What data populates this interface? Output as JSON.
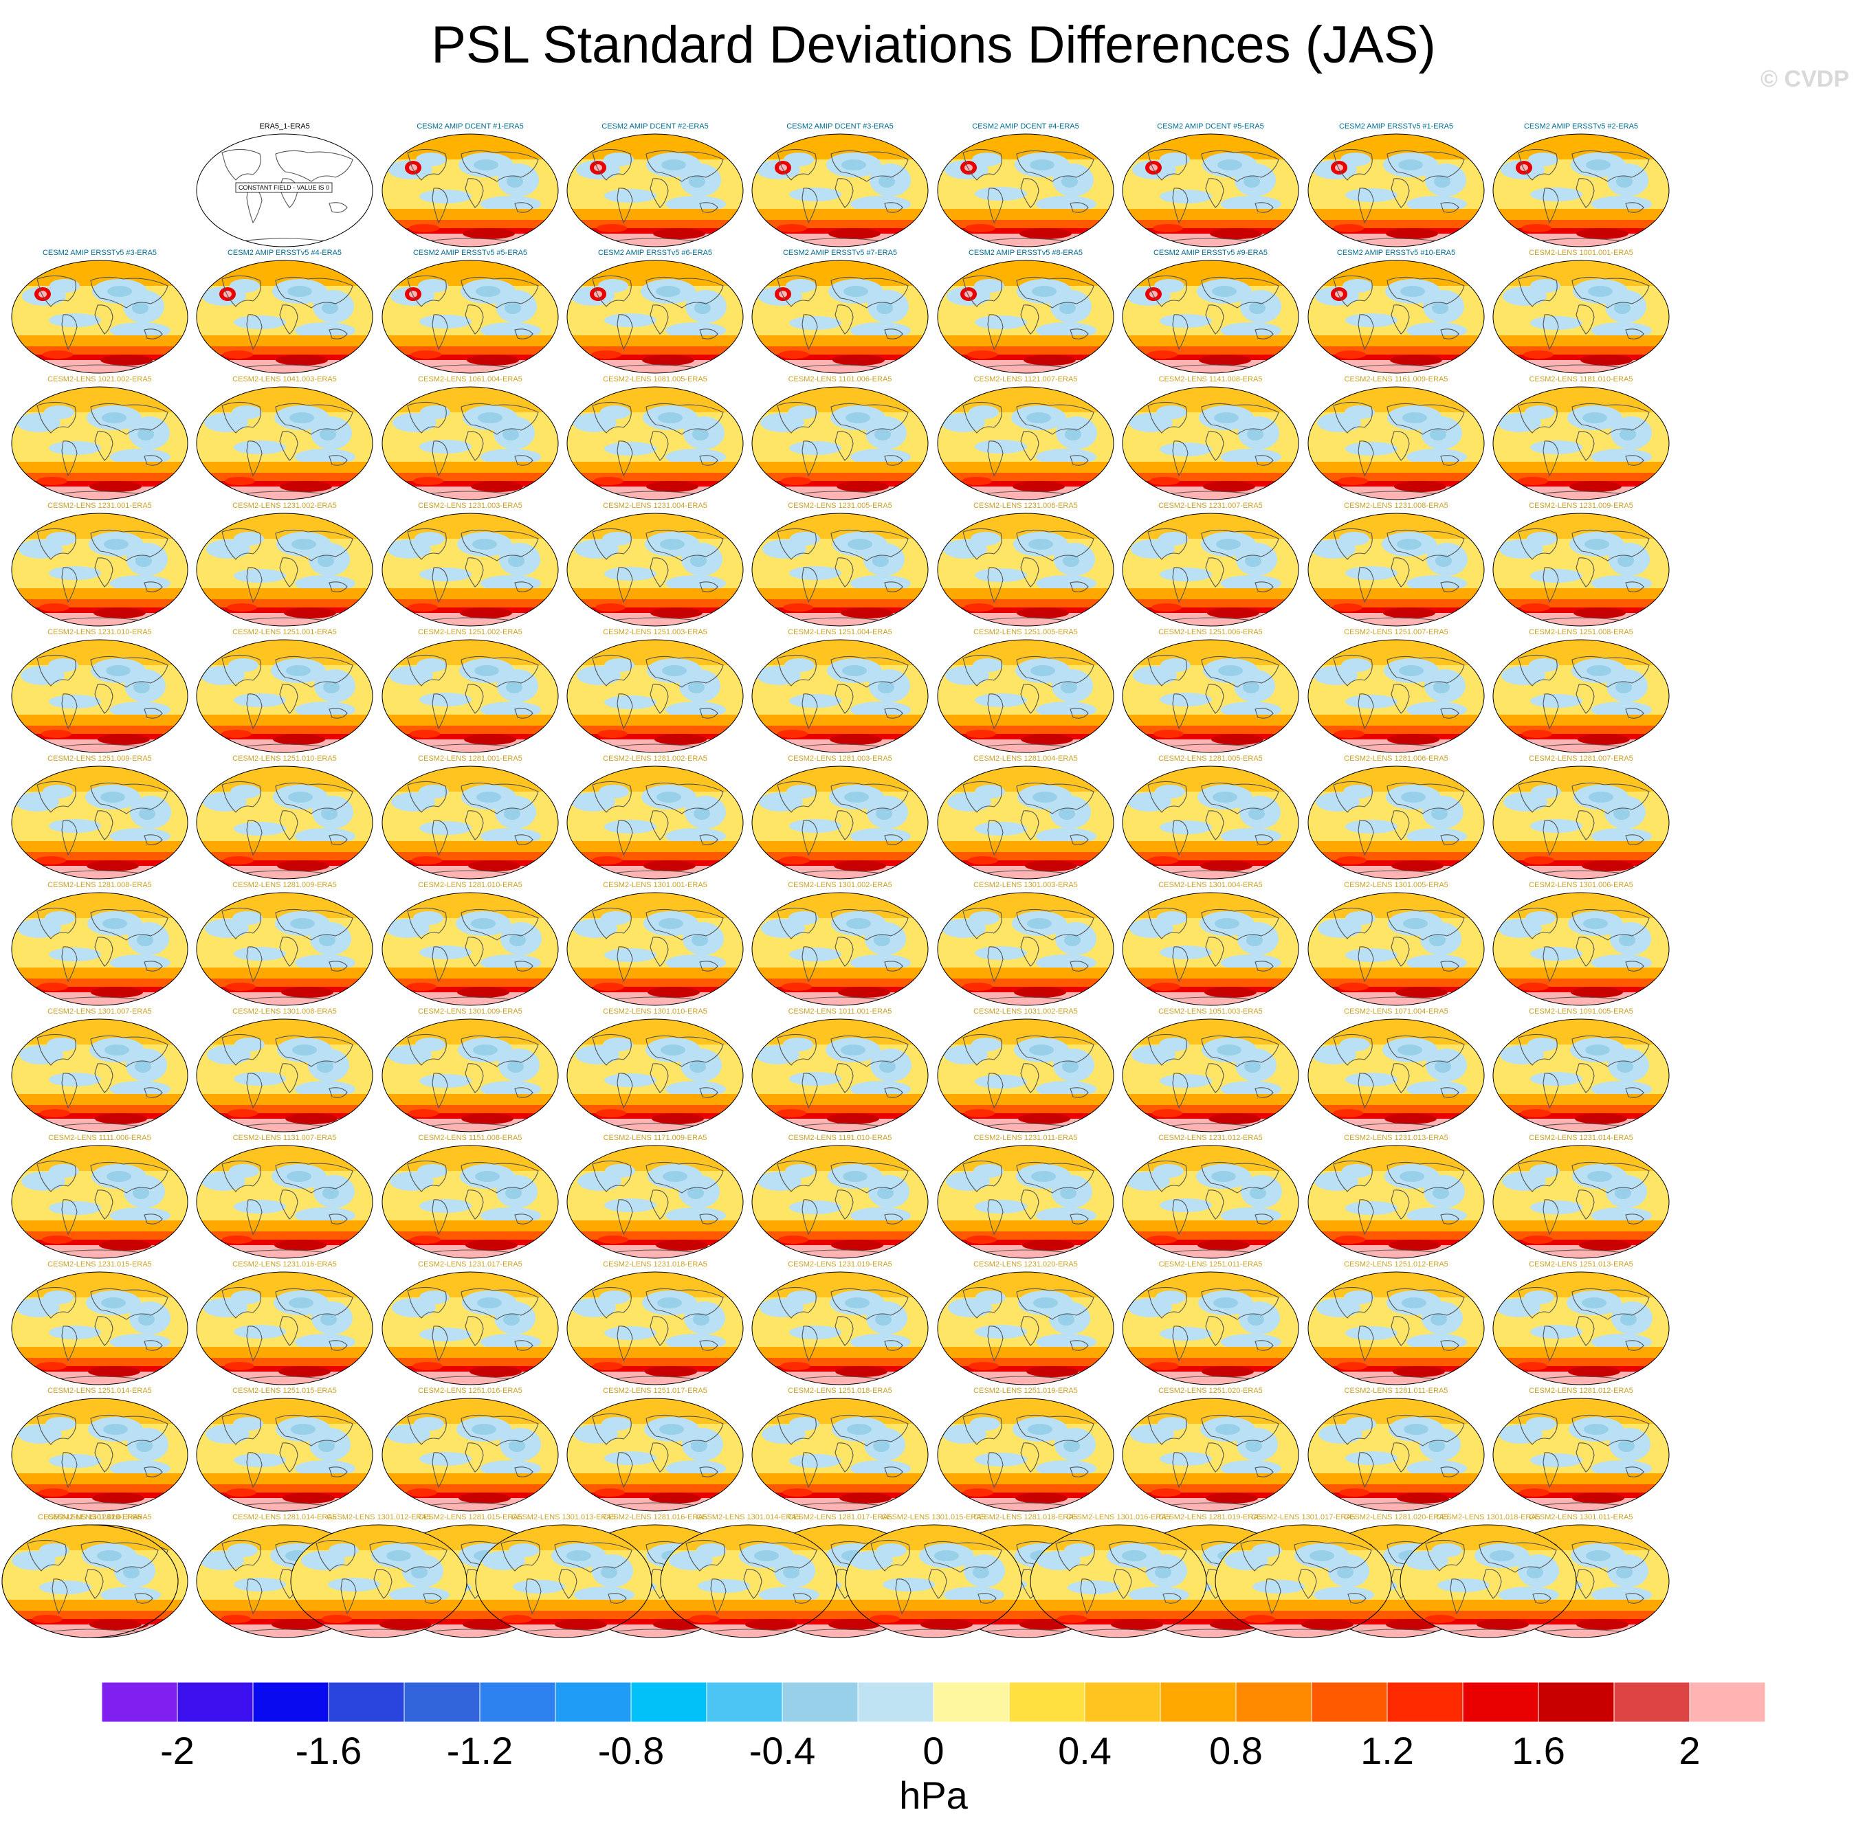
{
  "title": "PSL Standard Deviations Differences (JAS)",
  "watermark": "© CVDP",
  "colorbar": {
    "units": "hPa",
    "tick_labels": [
      "-2",
      "-1.6",
      "-1.2",
      "-0.8",
      "-0.4",
      "0",
      "0.4",
      "0.8",
      "1.2",
      "1.6",
      "2"
    ],
    "tick_values": [
      -2,
      -1.6,
      -1.2,
      -0.8,
      -0.4,
      0,
      0.4,
      0.8,
      1.2,
      1.6,
      2
    ],
    "colors": [
      "#7f1ff0",
      "#3d10f0",
      "#0a0af0",
      "#2a45dd",
      "#3264dc",
      "#2d82f0",
      "#1f9cf5",
      "#02c0f8",
      "#4cc4f4",
      "#98cfe9",
      "#bfe3f3",
      "#fff7a0",
      "#ffe040",
      "#ffc41f",
      "#ffa800",
      "#ff8a00",
      "#ff5a00",
      "#ff2a00",
      "#e90000",
      "#c80000",
      "#dd4444",
      "#ffb3b3"
    ]
  },
  "panels": [
    {
      "label": "ERA5_1-ERA5",
      "kind": "constant",
      "note": "CONSTANT FIELD - VALUE IS 0"
    },
    {
      "label": "CESM2 AMIP DCENT #1-ERA5",
      "kind": "amip"
    },
    {
      "label": "CESM2 AMIP DCENT #2-ERA5",
      "kind": "amip"
    },
    {
      "label": "CESM2 AMIP DCENT #3-ERA5",
      "kind": "amip"
    },
    {
      "label": "CESM2 AMIP DCENT #4-ERA5",
      "kind": "amip"
    },
    {
      "label": "CESM2 AMIP DCENT #5-ERA5",
      "kind": "amip"
    },
    {
      "label": "CESM2 AMIP ERSSTv5 #1-ERA5",
      "kind": "amip"
    },
    {
      "label": "CESM2 AMIP ERSSTv5 #2-ERA5",
      "kind": "amip"
    },
    {
      "label": "CESM2 AMIP ERSSTv5 #3-ERA5",
      "kind": "amip"
    },
    {
      "label": "CESM2 AMIP ERSSTv5 #4-ERA5",
      "kind": "amip"
    },
    {
      "label": "CESM2 AMIP ERSSTv5 #5-ERA5",
      "kind": "amip"
    },
    {
      "label": "CESM2 AMIP ERSSTv5 #6-ERA5",
      "kind": "amip"
    },
    {
      "label": "CESM2 AMIP ERSSTv5 #7-ERA5",
      "kind": "amip"
    },
    {
      "label": "CESM2 AMIP ERSSTv5 #8-ERA5",
      "kind": "amip"
    },
    {
      "label": "CESM2 AMIP ERSSTv5 #9-ERA5",
      "kind": "amip"
    },
    {
      "label": "CESM2 AMIP ERSSTv5 #10-ERA5",
      "kind": "amip"
    },
    {
      "label": "CESM2-LENS 1001.001-ERA5",
      "kind": "lens"
    },
    {
      "label": "CESM2-LENS 1021.002-ERA5",
      "kind": "lens"
    },
    {
      "label": "CESM2-LENS 1041.003-ERA5",
      "kind": "lens"
    },
    {
      "label": "CESM2-LENS 1061.004-ERA5",
      "kind": "lens"
    },
    {
      "label": "CESM2-LENS 1081.005-ERA5",
      "kind": "lens"
    },
    {
      "label": "CESM2-LENS 1101.006-ERA5",
      "kind": "lens"
    },
    {
      "label": "CESM2-LENS 1121.007-ERA5",
      "kind": "lens"
    },
    {
      "label": "CESM2-LENS 1141.008-ERA5",
      "kind": "lens"
    },
    {
      "label": "CESM2-LENS 1161.009-ERA5",
      "kind": "lens"
    },
    {
      "label": "CESM2-LENS 1181.010-ERA5",
      "kind": "lens"
    },
    {
      "label": "CESM2-LENS 1231.001-ERA5",
      "kind": "lens"
    },
    {
      "label": "CESM2-LENS 1231.002-ERA5",
      "kind": "lens"
    },
    {
      "label": "CESM2-LENS 1231.003-ERA5",
      "kind": "lens"
    },
    {
      "label": "CESM2-LENS 1231.004-ERA5",
      "kind": "lens"
    },
    {
      "label": "CESM2-LENS 1231.005-ERA5",
      "kind": "lens"
    },
    {
      "label": "CESM2-LENS 1231.006-ERA5",
      "kind": "lens"
    },
    {
      "label": "CESM2-LENS 1231.007-ERA5",
      "kind": "lens"
    },
    {
      "label": "CESM2-LENS 1231.008-ERA5",
      "kind": "lens"
    },
    {
      "label": "CESM2-LENS 1231.009-ERA5",
      "kind": "lens"
    },
    {
      "label": "CESM2-LENS 1231.010-ERA5",
      "kind": "lens"
    },
    {
      "label": "CESM2-LENS 1251.001-ERA5",
      "kind": "lens"
    },
    {
      "label": "CESM2-LENS 1251.002-ERA5",
      "kind": "lens"
    },
    {
      "label": "CESM2-LENS 1251.003-ERA5",
      "kind": "lens"
    },
    {
      "label": "CESM2-LENS 1251.004-ERA5",
      "kind": "lens"
    },
    {
      "label": "CESM2-LENS 1251.005-ERA5",
      "kind": "lens"
    },
    {
      "label": "CESM2-LENS 1251.006-ERA5",
      "kind": "lens"
    },
    {
      "label": "CESM2-LENS 1251.007-ERA5",
      "kind": "lens"
    },
    {
      "label": "CESM2-LENS 1251.008-ERA5",
      "kind": "lens"
    },
    {
      "label": "CESM2-LENS 1251.009-ERA5",
      "kind": "lens"
    },
    {
      "label": "CESM2-LENS 1251.010-ERA5",
      "kind": "lens"
    },
    {
      "label": "CESM2-LENS 1281.001-ERA5",
      "kind": "lens"
    },
    {
      "label": "CESM2-LENS 1281.002-ERA5",
      "kind": "lens"
    },
    {
      "label": "CESM2-LENS 1281.003-ERA5",
      "kind": "lens"
    },
    {
      "label": "CESM2-LENS 1281.004-ERA5",
      "kind": "lens"
    },
    {
      "label": "CESM2-LENS 1281.005-ERA5",
      "kind": "lens"
    },
    {
      "label": "CESM2-LENS 1281.006-ERA5",
      "kind": "lens"
    },
    {
      "label": "CESM2-LENS 1281.007-ERA5",
      "kind": "lens"
    },
    {
      "label": "CESM2-LENS 1281.008-ERA5",
      "kind": "lens"
    },
    {
      "label": "CESM2-LENS 1281.009-ERA5",
      "kind": "lens"
    },
    {
      "label": "CESM2-LENS 1281.010-ERA5",
      "kind": "lens"
    },
    {
      "label": "CESM2-LENS 1301.001-ERA5",
      "kind": "lens"
    },
    {
      "label": "CESM2-LENS 1301.002-ERA5",
      "kind": "lens"
    },
    {
      "label": "CESM2-LENS 1301.003-ERA5",
      "kind": "lens"
    },
    {
      "label": "CESM2-LENS 1301.004-ERA5",
      "kind": "lens"
    },
    {
      "label": "CESM2-LENS 1301.005-ERA5",
      "kind": "lens"
    },
    {
      "label": "CESM2-LENS 1301.006-ERA5",
      "kind": "lens"
    },
    {
      "label": "CESM2-LENS 1301.007-ERA5",
      "kind": "lens"
    },
    {
      "label": "CESM2-LENS 1301.008-ERA5",
      "kind": "lens"
    },
    {
      "label": "CESM2-LENS 1301.009-ERA5",
      "kind": "lens"
    },
    {
      "label": "CESM2-LENS 1301.010-ERA5",
      "kind": "lens"
    },
    {
      "label": "CESM2-LENS 1011.001-ERA5",
      "kind": "lens"
    },
    {
      "label": "CESM2-LENS 1031.002-ERA5",
      "kind": "lens"
    },
    {
      "label": "CESM2-LENS 1051.003-ERA5",
      "kind": "lens"
    },
    {
      "label": "CESM2-LENS 1071.004-ERA5",
      "kind": "lens"
    },
    {
      "label": "CESM2-LENS 1091.005-ERA5",
      "kind": "lens"
    },
    {
      "label": "CESM2-LENS 1111.006-ERA5",
      "kind": "lens"
    },
    {
      "label": "CESM2-LENS 1131.007-ERA5",
      "kind": "lens"
    },
    {
      "label": "CESM2-LENS 1151.008-ERA5",
      "kind": "lens"
    },
    {
      "label": "CESM2-LENS 1171.009-ERA5",
      "kind": "lens"
    },
    {
      "label": "CESM2-LENS 1191.010-ERA5",
      "kind": "lens"
    },
    {
      "label": "CESM2-LENS 1231.011-ERA5",
      "kind": "lens"
    },
    {
      "label": "CESM2-LENS 1231.012-ERA5",
      "kind": "lens"
    },
    {
      "label": "CESM2-LENS 1231.013-ERA5",
      "kind": "lens"
    },
    {
      "label": "CESM2-LENS 1231.014-ERA5",
      "kind": "lens"
    },
    {
      "label": "CESM2-LENS 1231.015-ERA5",
      "kind": "lens"
    },
    {
      "label": "CESM2-LENS 1231.016-ERA5",
      "kind": "lens"
    },
    {
      "label": "CESM2-LENS 1231.017-ERA5",
      "kind": "lens"
    },
    {
      "label": "CESM2-LENS 1231.018-ERA5",
      "kind": "lens"
    },
    {
      "label": "CESM2-LENS 1231.019-ERA5",
      "kind": "lens"
    },
    {
      "label": "CESM2-LENS 1231.020-ERA5",
      "kind": "lens"
    },
    {
      "label": "CESM2-LENS 1251.011-ERA5",
      "kind": "lens"
    },
    {
      "label": "CESM2-LENS 1251.012-ERA5",
      "kind": "lens"
    },
    {
      "label": "CESM2-LENS 1251.013-ERA5",
      "kind": "lens"
    },
    {
      "label": "CESM2-LENS 1251.014-ERA5",
      "kind": "lens"
    },
    {
      "label": "CESM2-LENS 1251.015-ERA5",
      "kind": "lens"
    },
    {
      "label": "CESM2-LENS 1251.016-ERA5",
      "kind": "lens"
    },
    {
      "label": "CESM2-LENS 1251.017-ERA5",
      "kind": "lens"
    },
    {
      "label": "CESM2-LENS 1251.018-ERA5",
      "kind": "lens"
    },
    {
      "label": "CESM2-LENS 1251.019-ERA5",
      "kind": "lens"
    },
    {
      "label": "CESM2-LENS 1251.020-ERA5",
      "kind": "lens"
    },
    {
      "label": "CESM2-LENS 1281.011-ERA5",
      "kind": "lens"
    },
    {
      "label": "CESM2-LENS 1281.012-ERA5",
      "kind": "lens"
    },
    {
      "label": "CESM2-LENS 1281.013-ERA5",
      "kind": "lens"
    },
    {
      "label": "CESM2-LENS 1281.014-ERA5",
      "kind": "lens"
    },
    {
      "label": "CESM2-LENS 1281.015-ERA5",
      "kind": "lens"
    },
    {
      "label": "CESM2-LENS 1281.016-ERA5",
      "kind": "lens"
    },
    {
      "label": "CESM2-LENS 1281.017-ERA5",
      "kind": "lens"
    },
    {
      "label": "CESM2-LENS 1281.018-ERA5",
      "kind": "lens"
    },
    {
      "label": "CESM2-LENS 1281.019-ERA5",
      "kind": "lens"
    },
    {
      "label": "CESM2-LENS 1281.020-ERA5",
      "kind": "lens"
    },
    {
      "label": "CESM2-LENS 1301.011-ERA5",
      "kind": "lens"
    },
    {
      "label": "CESM2-LENS 1301.012-ERA5",
      "kind": "lens"
    },
    {
      "label": "CESM2-LENS 1301.013-ERA5",
      "kind": "lens"
    },
    {
      "label": "CESM2-LENS 1301.014-ERA5",
      "kind": "lens"
    },
    {
      "label": "CESM2-LENS 1301.015-ERA5",
      "kind": "lens"
    },
    {
      "label": "CESM2-LENS 1301.016-ERA5",
      "kind": "lens"
    },
    {
      "label": "CESM2-LENS 1301.017-ERA5",
      "kind": "lens"
    },
    {
      "label": "CESM2-LENS 1301.018-ERA5",
      "kind": "lens"
    },
    {
      "label": "CESM2-LENS 1301.019-ERA5",
      "kind": "lens"
    },
    {
      "label": "CESM2-LENS 1301.020-ERA5",
      "kind": "lens"
    }
  ],
  "label_colors": {
    "constant": "#000000",
    "amip": "#006b8f",
    "lens": "#c9a227"
  }
}
